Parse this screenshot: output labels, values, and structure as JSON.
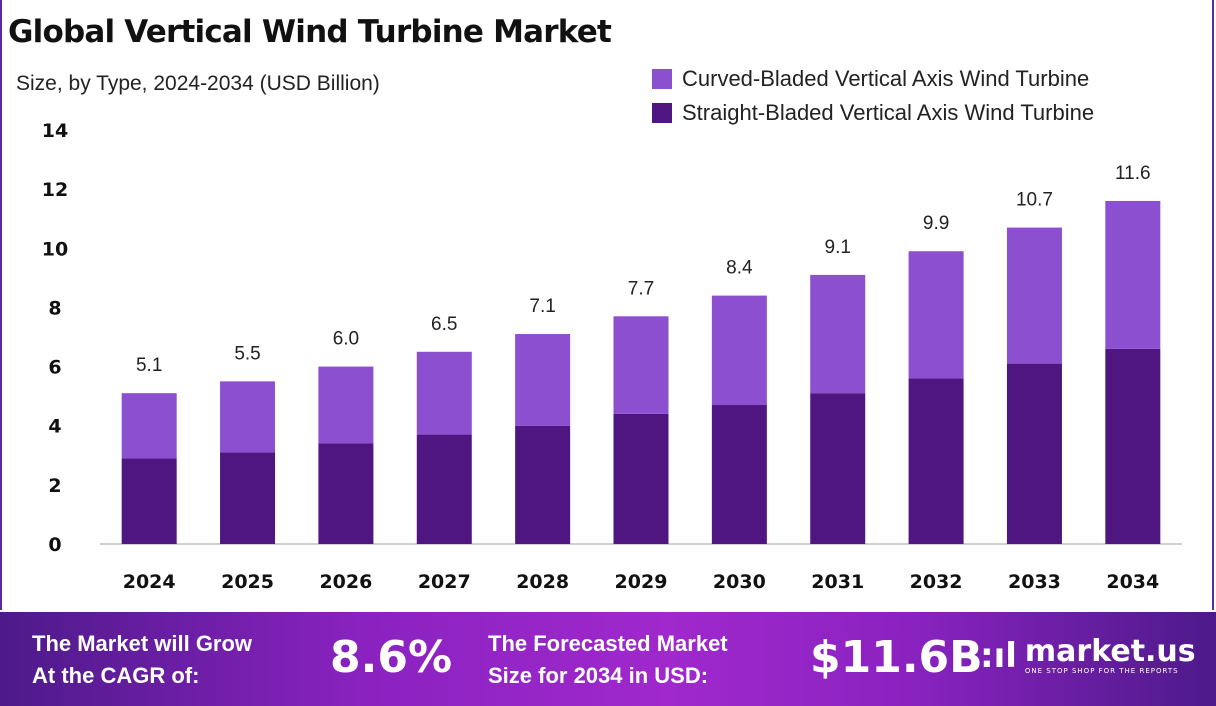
{
  "title": "Global Vertical Wind Turbine Market",
  "subtitle": "Size, by Type, 2024-2034 (USD Billion)",
  "colors": {
    "curved": "#8b4fcf",
    "straight": "#4f1580",
    "footer": "#9a26c8"
  },
  "chart_data": {
    "type": "bar",
    "stacked": true,
    "categories": [
      "2024",
      "2025",
      "2026",
      "2027",
      "2028",
      "2029",
      "2030",
      "2031",
      "2032",
      "2033",
      "2034"
    ],
    "series": [
      {
        "name": "Straight-Bladed Vertical Axis Wind Turbine",
        "values": [
          2.9,
          3.1,
          3.4,
          3.7,
          4.0,
          4.4,
          4.7,
          5.1,
          5.6,
          6.1,
          6.6
        ]
      },
      {
        "name": "Curved-Bladed Vertical Axis Wind Turbine",
        "values": [
          2.2,
          2.4,
          2.6,
          2.8,
          3.1,
          3.3,
          3.7,
          4.0,
          4.3,
          4.6,
          5.0
        ]
      }
    ],
    "totals": [
      "5.1",
      "5.5",
      "6.0",
      "6.5",
      "7.1",
      "7.7",
      "8.4",
      "9.1",
      "9.9",
      "10.7",
      "11.6"
    ],
    "yticks": [
      "0",
      "2",
      "4",
      "6",
      "8",
      "10",
      "12",
      "14"
    ],
    "ylim": [
      0,
      14
    ],
    "grid": false,
    "legend": "top-right"
  },
  "legend": {
    "curved": "Curved-Bladed Vertical Axis Wind Turbine",
    "straight": "Straight-Bladed Vertical Axis Wind Turbine"
  },
  "footer": {
    "cagr_label_1": "The Market will Grow",
    "cagr_label_2": "At the CAGR of:",
    "cagr_value": "8.6%",
    "forecast_label_1": "The Forecasted Market",
    "forecast_label_2": "Size for 2034 in USD:",
    "forecast_value": "$11.6B",
    "brand": "market.us",
    "tagline": "ONE STOP SHOP FOR THE REPORTS"
  }
}
